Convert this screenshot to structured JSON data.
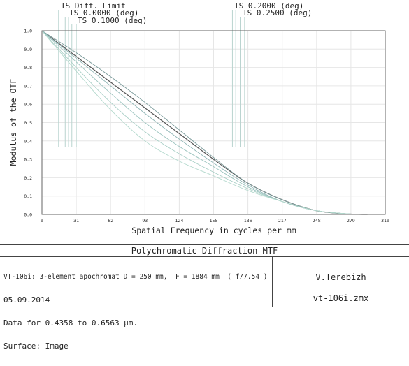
{
  "chart_data": {
    "type": "line",
    "title": "Polychromatic Diffraction MTF",
    "xlabel": "Spatial Frequency in cycles per mm",
    "ylabel": "Modulus of the OTF",
    "xlim": [
      0,
      310
    ],
    "ylim": [
      0,
      1.0
    ],
    "xticks": [
      "0",
      "31",
      "62",
      "93",
      "124",
      "155",
      "186",
      "217",
      "248",
      "279",
      "310"
    ],
    "yticks": [
      "0.0",
      "0.1",
      "0.2",
      "0.3",
      "0.4",
      "0.5",
      "0.6",
      "0.7",
      "0.8",
      "0.9",
      "1.0"
    ],
    "grid": true,
    "legend": [
      {
        "label": "TS Diff. Limit",
        "marker_x": [
          15,
          18
        ]
      },
      {
        "label": "TS 0.0000 (deg)",
        "marker_x": [
          21,
          24
        ]
      },
      {
        "label": "TS 0.1000 (deg)",
        "marker_x": [
          27,
          31
        ]
      },
      {
        "label": "TS 0.2000 (deg)",
        "marker_x": [
          172,
          175
        ]
      },
      {
        "label": "TS 0.2500 (deg)",
        "marker_x": [
          179,
          183
        ]
      }
    ],
    "series": [
      {
        "color": "#555555",
        "x": [
          0,
          31,
          62,
          93,
          124,
          155,
          186,
          217,
          248,
          279,
          294
        ],
        "y": [
          1.0,
          0.86,
          0.72,
          0.58,
          0.44,
          0.3,
          0.17,
          0.08,
          0.02,
          0.002,
          0.0
        ]
      },
      {
        "color": "#7a9a9a",
        "x": [
          0,
          31,
          62,
          93,
          124,
          155,
          186,
          217,
          248,
          279,
          294
        ],
        "y": [
          1.0,
          0.88,
          0.75,
          0.61,
          0.46,
          0.31,
          0.17,
          0.08,
          0.02,
          0.002,
          0.0
        ]
      },
      {
        "color": "#8fb5b5",
        "x": [
          0,
          31,
          62,
          93,
          124,
          155,
          186,
          217,
          248,
          279,
          294
        ],
        "y": [
          1.0,
          0.85,
          0.7,
          0.55,
          0.41,
          0.28,
          0.16,
          0.07,
          0.02,
          0.002,
          0.0
        ]
      },
      {
        "color": "#9cc4bf",
        "x": [
          0,
          31,
          62,
          93,
          124,
          155,
          186,
          217,
          248,
          279,
          294
        ],
        "y": [
          1.0,
          0.83,
          0.66,
          0.5,
          0.37,
          0.26,
          0.15,
          0.07,
          0.02,
          0.002,
          0.0
        ]
      },
      {
        "color": "#a8cfc6",
        "x": [
          0,
          31,
          62,
          93,
          124,
          155,
          186,
          217,
          248,
          279,
          294
        ],
        "y": [
          1.0,
          0.8,
          0.61,
          0.45,
          0.33,
          0.23,
          0.14,
          0.07,
          0.02,
          0.002,
          0.0
        ]
      },
      {
        "color": "#b2d8cc",
        "x": [
          0,
          31,
          62,
          93,
          124,
          155,
          186,
          217,
          248,
          279,
          294
        ],
        "y": [
          1.0,
          0.78,
          0.57,
          0.4,
          0.29,
          0.21,
          0.13,
          0.07,
          0.02,
          0.002,
          0.0
        ]
      }
    ]
  },
  "info": {
    "line1": "VT-106i: 3-element apochromat D = 250 mm,  F = 1884 mm  ( f/7.54 )",
    "line2": "05.09.2014",
    "line3": "Data for 0.4358 to 0.6563 µm.",
    "line4": "Surface: Image",
    "author": "V.Terebizh",
    "filename": "vt-106i.zmx"
  }
}
